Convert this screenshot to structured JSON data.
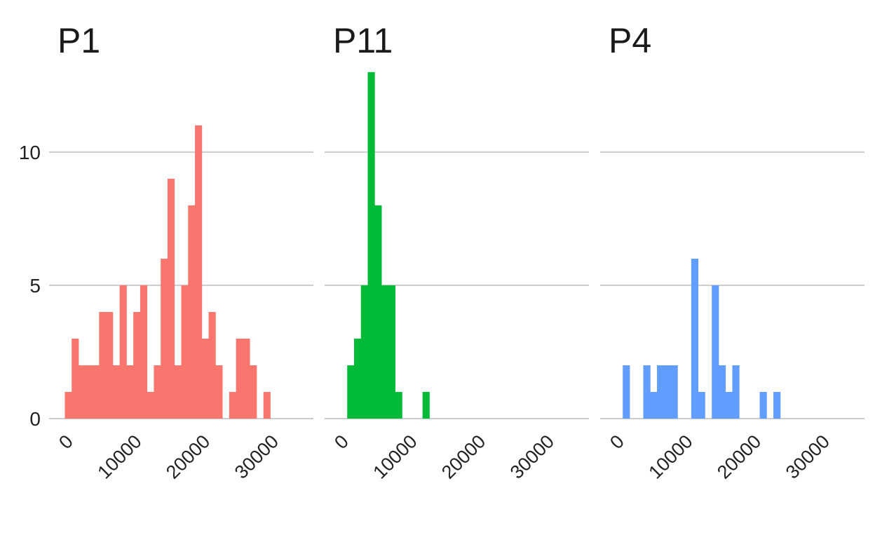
{
  "chart_data": {
    "type": "bar",
    "kind": "faceted-histogram",
    "x_ticks": [
      0,
      10000,
      20000,
      30000
    ],
    "x_tick_labels": [
      "0",
      "10000",
      "20000",
      "30000"
    ],
    "xlim": [
      -2300,
      36300
    ],
    "y_ticks": [
      0,
      5,
      10
    ],
    "y_tick_labels": [
      "0",
      "5",
      "10"
    ],
    "ylim": [
      0,
      13.6
    ],
    "bin_start": 0,
    "bin_width": 1000,
    "grid": "horizontal",
    "xlabel": "",
    "ylabel": "",
    "panels": [
      {
        "title": "P1",
        "color": "#F8766D",
        "counts": [
          1,
          3,
          2,
          2,
          2,
          4,
          4,
          2,
          5,
          2,
          4,
          5,
          1,
          2,
          6,
          9,
          2,
          5,
          8,
          11,
          3,
          4,
          2,
          0,
          1,
          3,
          3,
          2,
          0,
          1
        ]
      },
      {
        "title": "P11",
        "color": "#00BA38",
        "counts": [
          0,
          2,
          3,
          5,
          13,
          8,
          5,
          5,
          1,
          0,
          0,
          0,
          1,
          0,
          0,
          0,
          0,
          0,
          0,
          0,
          0,
          0,
          0,
          0,
          0,
          0,
          0,
          0,
          0,
          0
        ]
      },
      {
        "title": "P4",
        "color": "#619CFF",
        "counts": [
          0,
          2,
          0,
          0,
          2,
          1,
          2,
          2,
          2,
          0,
          0,
          6,
          1,
          0,
          5,
          2,
          1,
          2,
          0,
          0,
          0,
          1,
          0,
          1,
          0,
          0,
          0,
          0,
          0,
          0
        ]
      }
    ]
  }
}
